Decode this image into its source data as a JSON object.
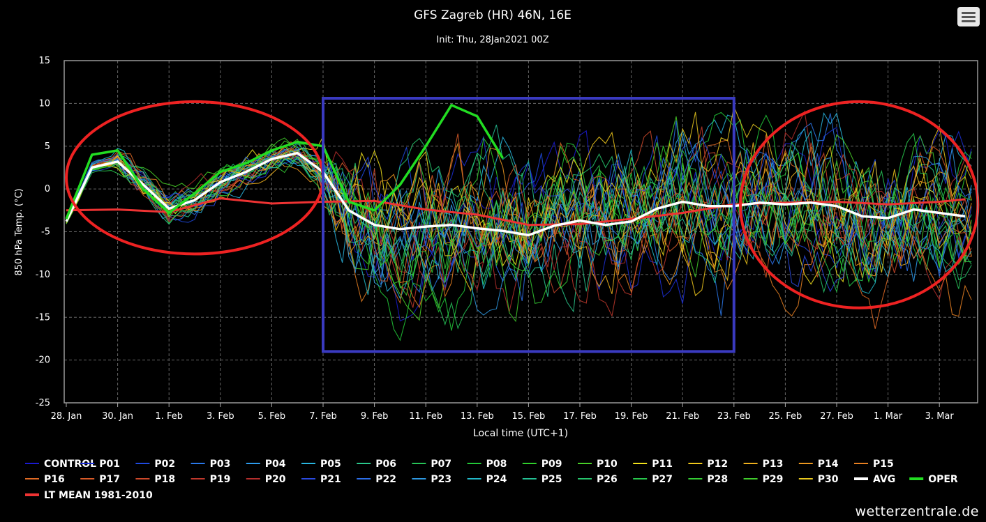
{
  "header": {
    "title": "GFS Zagreb (HR) 46N, 16E",
    "subtitle": "Init: Thu, 28Jan2021 00Z"
  },
  "menu": {
    "icon": "hamburger-menu-icon"
  },
  "credit": "wetterzentrale.de",
  "chart_data": {
    "type": "line",
    "title": "GFS Zagreb (HR) 46N, 16E",
    "subtitle": "Init: Thu, 28Jan2021 00Z",
    "xlabel": "Local time (UTC+1)",
    "ylabel": "850 hPa Temp. (°C)",
    "xlim": [
      "2021-01-28",
      "2021-03-04 12:00"
    ],
    "ylim": [
      -25,
      15
    ],
    "yticks": [
      -25,
      -20,
      -15,
      -10,
      -5,
      0,
      5,
      10,
      15
    ],
    "xtick_labels": [
      "28. Jan",
      "30. Jan",
      "1. Feb",
      "3. Feb",
      "5. Feb",
      "7. Feb",
      "9. Feb",
      "11. Feb",
      "13. Feb",
      "15. Feb",
      "17. Feb",
      "19. Feb",
      "21. Feb",
      "23. Feb",
      "25. Feb",
      "27. Feb",
      "1. Mar",
      "3. Mar"
    ],
    "grid": true,
    "legend_position": "bottom",
    "colors": {
      "CONTROL": "#1a1ad0",
      "P01": "#1c2fd8",
      "P02": "#1f4ae0",
      "P03": "#2a78ea",
      "P04": "#2d9cee",
      "P05": "#29b6e0",
      "P06": "#2ac88c",
      "P07": "#27c458",
      "P08": "#22c838",
      "P09": "#30d02c",
      "P10": "#48d028",
      "P11": "#f2e21c",
      "P12": "#f0c81c",
      "P13": "#eeb01e",
      "P14": "#ec9820",
      "P15": "#e88022",
      "P16": "#e06a24",
      "P17": "#d85a28",
      "P18": "#cc482a",
      "P19": "#c0382c",
      "P20": "#b42e2c",
      "P21": "#2a4ae0",
      "P22": "#2c6ee8",
      "P23": "#2e98e0",
      "P24": "#22b8c8",
      "P25": "#24c094",
      "P26": "#26c46c",
      "P27": "#28c84c",
      "P28": "#34cc34",
      "P29": "#40cc2c",
      "P30": "#e8c81e",
      "AVG": "#ffffff",
      "OPER": "#22dd22",
      "LT MEAN 1981-2010": "#ee3333"
    },
    "series": [
      {
        "name": "AVG",
        "x": [
          "2021-01-28",
          "2021-01-29",
          "2021-01-30",
          "2021-01-31",
          "2021-02-01",
          "2021-02-02",
          "2021-02-03",
          "2021-02-04",
          "2021-02-05",
          "2021-02-06",
          "2021-02-07",
          "2021-02-08",
          "2021-02-09",
          "2021-02-10",
          "2021-02-11",
          "2021-02-12",
          "2021-02-13",
          "2021-02-14",
          "2021-02-15",
          "2021-02-16",
          "2021-02-17",
          "2021-02-18",
          "2021-02-19",
          "2021-02-20",
          "2021-02-21",
          "2021-02-22",
          "2021-02-23",
          "2021-02-24",
          "2021-02-25",
          "2021-02-26",
          "2021-02-27",
          "2021-02-28",
          "2021-03-01",
          "2021-03-02",
          "2021-03-03",
          "2021-03-04"
        ],
        "values": [
          -3.8,
          2.5,
          3.2,
          0.5,
          -2.3,
          -1.3,
          0.8,
          2.0,
          3.5,
          4.2,
          2.0,
          -2.5,
          -4.2,
          -4.7,
          -4.4,
          -4.2,
          -4.6,
          -4.9,
          -5.4,
          -4.3,
          -3.7,
          -4.2,
          -3.8,
          -2.3,
          -1.5,
          -2.0,
          -2.0,
          -1.6,
          -1.8,
          -1.6,
          -2.0,
          -3.2,
          -3.4,
          -2.4,
          -2.8,
          -3.2
        ]
      },
      {
        "name": "OPER",
        "x": [
          "2021-01-28",
          "2021-01-29",
          "2021-01-30",
          "2021-01-31",
          "2021-02-01",
          "2021-02-02",
          "2021-02-03",
          "2021-02-04",
          "2021-02-05",
          "2021-02-06",
          "2021-02-07",
          "2021-02-08",
          "2021-02-09",
          "2021-02-10",
          "2021-02-11",
          "2021-02-12",
          "2021-02-13",
          "2021-02-14"
        ],
        "values": [
          -3.5,
          4.0,
          4.5,
          0.0,
          -2.8,
          -0.5,
          2.0,
          3.0,
          4.5,
          5.5,
          5.0,
          -1.5,
          -2.5,
          0.5,
          5.0,
          9.8,
          8.5,
          3.6
        ]
      },
      {
        "name": "LT MEAN 1981-2010",
        "x": [
          "2021-01-28",
          "2021-01-30",
          "2021-02-01",
          "2021-02-03",
          "2021-02-05",
          "2021-02-07",
          "2021-02-09",
          "2021-02-11",
          "2021-02-13",
          "2021-02-15",
          "2021-02-17",
          "2021-02-19",
          "2021-02-21",
          "2021-02-23",
          "2021-02-25",
          "2021-02-27",
          "2021-03-01",
          "2021-03-03",
          "2021-03-04"
        ],
        "values": [
          -2.5,
          -2.4,
          -2.7,
          -1.1,
          -1.7,
          -1.5,
          -1.4,
          -2.4,
          -3.0,
          -4.2,
          -4.1,
          -3.5,
          -2.8,
          -1.8,
          -1.6,
          -1.5,
          -1.8,
          -1.5,
          -1.2
        ]
      }
    ],
    "legend": [
      "CONTROL",
      "P01",
      "P02",
      "P03",
      "P04",
      "P05",
      "P06",
      "P07",
      "P08",
      "P09",
      "P10",
      "P11",
      "P12",
      "P13",
      "P14",
      "P15",
      "P16",
      "P17",
      "P18",
      "P19",
      "P20",
      "P21",
      "P22",
      "P23",
      "P24",
      "P25",
      "P26",
      "P27",
      "P28",
      "P29",
      "P30",
      "AVG",
      "OPER",
      "LT MEAN 1981-2010"
    ],
    "annotations": [
      {
        "shape": "ellipse",
        "color": "#ee2222",
        "x_range": [
          "2021-01-28",
          "2021-02-07"
        ],
        "y_range": [
          -7.6,
          10.2
        ]
      },
      {
        "shape": "rectangle",
        "color": "#3a3ac0",
        "x_range": [
          "2021-02-07",
          "2021-02-23"
        ],
        "y_range": [
          -19,
          10.6
        ]
      },
      {
        "shape": "ellipse",
        "color": "#ee2222",
        "x_range": [
          "2021-02-23 06:00",
          "2021-03-04 12:00"
        ],
        "y_range": [
          -13.9,
          10.2
        ]
      }
    ]
  }
}
